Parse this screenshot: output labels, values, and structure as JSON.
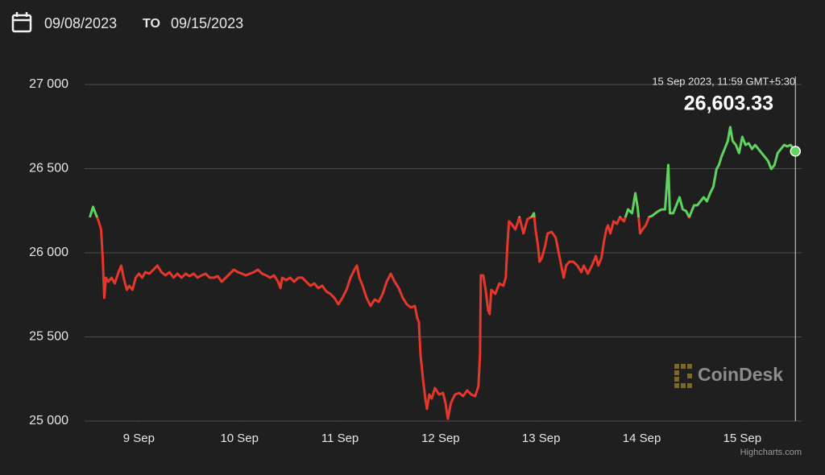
{
  "header": {
    "from": "09/08/2023",
    "separator": "TO",
    "to": "09/15/2023"
  },
  "chart_data": {
    "type": "line",
    "x": [
      8.512,
      8.544,
      8.568,
      8.6,
      8.624,
      8.64,
      8.656,
      8.672,
      8.696,
      8.728,
      8.76,
      8.792,
      8.824,
      8.848,
      8.88,
      8.904,
      8.936,
      8.968,
      9.0,
      9.032,
      9.064,
      9.104,
      9.144,
      9.184,
      9.224,
      9.264,
      9.304,
      9.344,
      9.384,
      9.424,
      9.464,
      9.504,
      9.544,
      9.584,
      9.624,
      9.664,
      9.704,
      9.744,
      9.784,
      9.824,
      9.864,
      9.904,
      9.944,
      9.984,
      10.024,
      10.064,
      10.104,
      10.144,
      10.184,
      10.224,
      10.264,
      10.304,
      10.344,
      10.384,
      10.408,
      10.424,
      10.464,
      10.504,
      10.544,
      10.584,
      10.624,
      10.664,
      10.704,
      10.744,
      10.784,
      10.824,
      10.864,
      10.904,
      10.944,
      10.984,
      11.024,
      11.064,
      11.104,
      11.144,
      11.168,
      11.192,
      11.224,
      11.264,
      11.304,
      11.344,
      11.384,
      11.424,
      11.464,
      11.504,
      11.544,
      11.584,
      11.624,
      11.664,
      11.704,
      11.744,
      11.768,
      11.784,
      11.8,
      11.824,
      11.848,
      11.864,
      11.888,
      11.912,
      11.944,
      11.984,
      12.024,
      12.048,
      12.072,
      12.104,
      12.144,
      12.184,
      12.224,
      12.264,
      12.304,
      12.344,
      12.376,
      12.392,
      12.4,
      12.424,
      12.448,
      12.472,
      12.488,
      12.504,
      12.544,
      12.584,
      12.624,
      12.648,
      12.664,
      12.68,
      12.704,
      12.744,
      12.784,
      12.824,
      12.864,
      12.904,
      12.928,
      12.944,
      12.968,
      12.984,
      13.008,
      13.04,
      13.064,
      13.104,
      13.144,
      13.184,
      13.224,
      13.248,
      13.28,
      13.32,
      13.36,
      13.4,
      13.424,
      13.464,
      13.504,
      13.544,
      13.568,
      13.6,
      13.624,
      13.648,
      13.664,
      13.688,
      13.72,
      13.752,
      13.784,
      13.824,
      13.864,
      13.904,
      13.936,
      13.96,
      13.984,
      14.008,
      14.04,
      14.072,
      14.104,
      14.136,
      14.168,
      14.2,
      14.232,
      14.264,
      14.28,
      14.312,
      14.344,
      14.376,
      14.408,
      14.44,
      14.472,
      14.488,
      14.52,
      14.552,
      14.584,
      14.616,
      14.648,
      14.68,
      14.712,
      14.744,
      14.768,
      14.792,
      14.824,
      14.856,
      14.88,
      14.904,
      14.936,
      14.968,
      15.0,
      15.032,
      15.064,
      15.096,
      15.128,
      15.16,
      15.192,
      15.224,
      15.256,
      15.288,
      15.32,
      15.352,
      15.384,
      15.416,
      15.448,
      15.48,
      15.528
    ],
    "values": [
      26211,
      26273,
      26235,
      26187,
      26139,
      25971,
      25732,
      25852,
      25828,
      25852,
      25818,
      25876,
      25924,
      25852,
      25780,
      25804,
      25780,
      25852,
      25876,
      25852,
      25885,
      25876,
      25900,
      25924,
      25885,
      25866,
      25885,
      25852,
      25876,
      25852,
      25876,
      25861,
      25876,
      25852,
      25866,
      25876,
      25852,
      25852,
      25861,
      25828,
      25852,
      25876,
      25900,
      25885,
      25876,
      25866,
      25876,
      25885,
      25900,
      25876,
      25866,
      25852,
      25866,
      25828,
      25790,
      25852,
      25837,
      25852,
      25828,
      25852,
      25852,
      25828,
      25804,
      25818,
      25790,
      25804,
      25770,
      25756,
      25732,
      25694,
      25732,
      25780,
      25852,
      25900,
      25924,
      25852,
      25804,
      25732,
      25684,
      25723,
      25708,
      25756,
      25828,
      25876,
      25828,
      25790,
      25732,
      25694,
      25675,
      25684,
      25612,
      25589,
      25397,
      25254,
      25134,
      25072,
      25158,
      25134,
      25196,
      25158,
      25167,
      25110,
      25014,
      25110,
      25158,
      25167,
      25148,
      25182,
      25158,
      25148,
      25206,
      25397,
      25866,
      25866,
      25780,
      25660,
      25636,
      25780,
      25756,
      25818,
      25804,
      25852,
      26043,
      26187,
      26172,
      26139,
      26211,
      26115,
      26201,
      26211,
      26235,
      26139,
      26043,
      25947,
      25971,
      26043,
      26115,
      26124,
      26091,
      25971,
      25852,
      25924,
      25947,
      25947,
      25924,
      25885,
      25924,
      25876,
      25924,
      25981,
      25924,
      25971,
      26067,
      26139,
      26163,
      26115,
      26187,
      26172,
      26211,
      26187,
      26258,
      26235,
      26354,
      26268,
      26115,
      26139,
      26163,
      26211,
      26220,
      26235,
      26249,
      26258,
      26258,
      26522,
      26235,
      26235,
      26282,
      26330,
      26258,
      26249,
      26211,
      26235,
      26282,
      26282,
      26306,
      26330,
      26306,
      26354,
      26392,
      26498,
      26522,
      26570,
      26617,
      26665,
      26747,
      26665,
      26641,
      26593,
      26689,
      26641,
      26651,
      26617,
      26641,
      26617,
      26593,
      26570,
      26546,
      26498,
      26522,
      26593,
      26617,
      26641,
      26632,
      26641,
      26603.33
    ],
    "colors": {
      "up": "#5fd35f",
      "down": "#e5372b"
    },
    "xlim": [
      8.46,
      15.59
    ],
    "xticks": [
      {
        "value": 9,
        "label": "9 Sep"
      },
      {
        "value": 10,
        "label": "10 Sep"
      },
      {
        "value": 11,
        "label": "11 Sep"
      },
      {
        "value": 12,
        "label": "12 Sep"
      },
      {
        "value": 13,
        "label": "13 Sep"
      },
      {
        "value": 14,
        "label": "14 Sep"
      },
      {
        "value": 15,
        "label": "15 Sep"
      }
    ],
    "ylim": [
      25000,
      27000
    ],
    "yticks": [
      {
        "value": 25000,
        "label": "25 000"
      },
      {
        "value": 25500,
        "label": "25 500"
      },
      {
        "value": 26000,
        "label": "26 000"
      },
      {
        "value": 26500,
        "label": "26 500"
      },
      {
        "value": 27000,
        "label": "27 000"
      }
    ],
    "grid": true,
    "tooltip": {
      "date": "15 Sep 2023, 11:59 GMT+5:30",
      "value": 26603.33,
      "label": "26,603.33"
    }
  },
  "branding": "CoinDesk",
  "credit": "Highcharts.com"
}
